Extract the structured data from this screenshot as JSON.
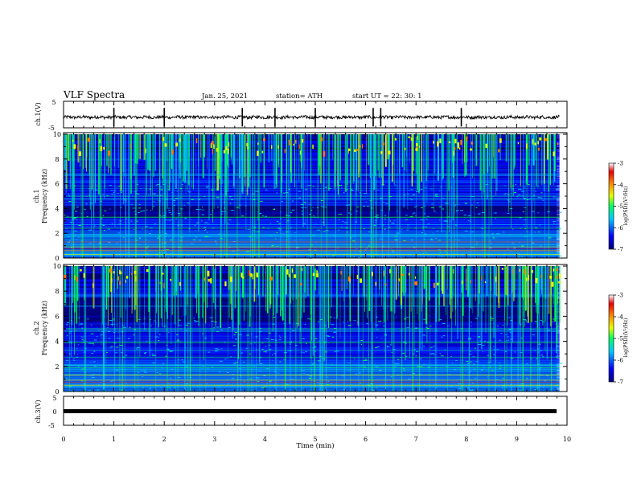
{
  "header": {
    "title": "VLF Spectra",
    "date": "Jan. 25, 2021",
    "station": "station= ATH",
    "start": "start  UT =   22: 30: 1"
  },
  "chart_data": [
    {
      "type": "line",
      "panel": "ch1-waveform",
      "ylabel": "ch.1(V)",
      "ylim": [
        -5,
        5
      ],
      "yticks": [
        "5",
        "-5"
      ],
      "xlim": [
        0,
        10
      ],
      "baseline": -1.0,
      "noise_amplitude": 0.6,
      "spikes_at_min": [
        1.0,
        2.0,
        3.55,
        4.2,
        5.0,
        6.15,
        6.3,
        7.9
      ],
      "line_color": "#000000"
    },
    {
      "type": "heatmap",
      "panel": "ch1-spectrogram",
      "ylabel": "Frequency (kHz)",
      "ylabel_prefix": "ch.1",
      "ylim": [
        0,
        10
      ],
      "yticks": [
        "0",
        "2",
        "4",
        "6",
        "8",
        "10"
      ],
      "xlim": [
        0,
        9.85
      ],
      "zlabel": "log(PSD)(V²/Hz)",
      "zlim": [
        -7,
        -3
      ],
      "zticks": [
        "-3",
        "-4",
        "-5",
        "-6",
        "-7"
      ],
      "colormap": [
        "#00007a",
        "#0000ff",
        "#00c8ff",
        "#00ff64",
        "#e6ff00",
        "#ff7800",
        "#e60000",
        "#ffffff"
      ],
      "horizontal_lines_khz": [
        6.7,
        5.0,
        4.8,
        3.3,
        2.7,
        2.4,
        1.9,
        1.3,
        0.9,
        0.6,
        0.3
      ],
      "dark_band_khz": [
        3.2,
        4.2
      ]
    },
    {
      "type": "heatmap",
      "panel": "ch2-spectrogram",
      "ylabel": "Frequency (kHz)",
      "ylabel_prefix": "ch.2",
      "ylim": [
        0,
        10
      ],
      "yticks": [
        "0",
        "2",
        "4",
        "6",
        "8",
        "10"
      ],
      "xlim": [
        0,
        9.85
      ],
      "zlabel": "log(PSD)(V²/Hz)",
      "zlim": [
        -7,
        -3
      ],
      "zticks": [
        "-3",
        "-4",
        "-5",
        "-6",
        "-7"
      ],
      "colormap": [
        "#00007a",
        "#0000ff",
        "#00c8ff",
        "#00ff64",
        "#e6ff00",
        "#ff7800",
        "#e60000",
        "#ffffff"
      ],
      "horizontal_lines_khz": [
        6.8,
        5.0,
        4.8,
        3.9,
        3.3,
        2.7,
        2.1,
        1.9,
        1.3,
        0.9,
        0.5
      ],
      "dark_band_khz": [
        5.5,
        7.5
      ]
    },
    {
      "type": "line",
      "panel": "ch3-waveform",
      "ylabel": "ch.3(V)",
      "ylim": [
        -5,
        5
      ],
      "yticks": [
        "5",
        "0",
        "-5"
      ],
      "xlim": [
        0,
        10
      ],
      "baseline": -0.5,
      "line_color": "#000000"
    }
  ],
  "xaxis": {
    "xlabel": "Time (min)",
    "ticks": [
      "0",
      "1",
      "2",
      "3",
      "4",
      "5",
      "6",
      "7",
      "8",
      "9",
      "10"
    ]
  }
}
